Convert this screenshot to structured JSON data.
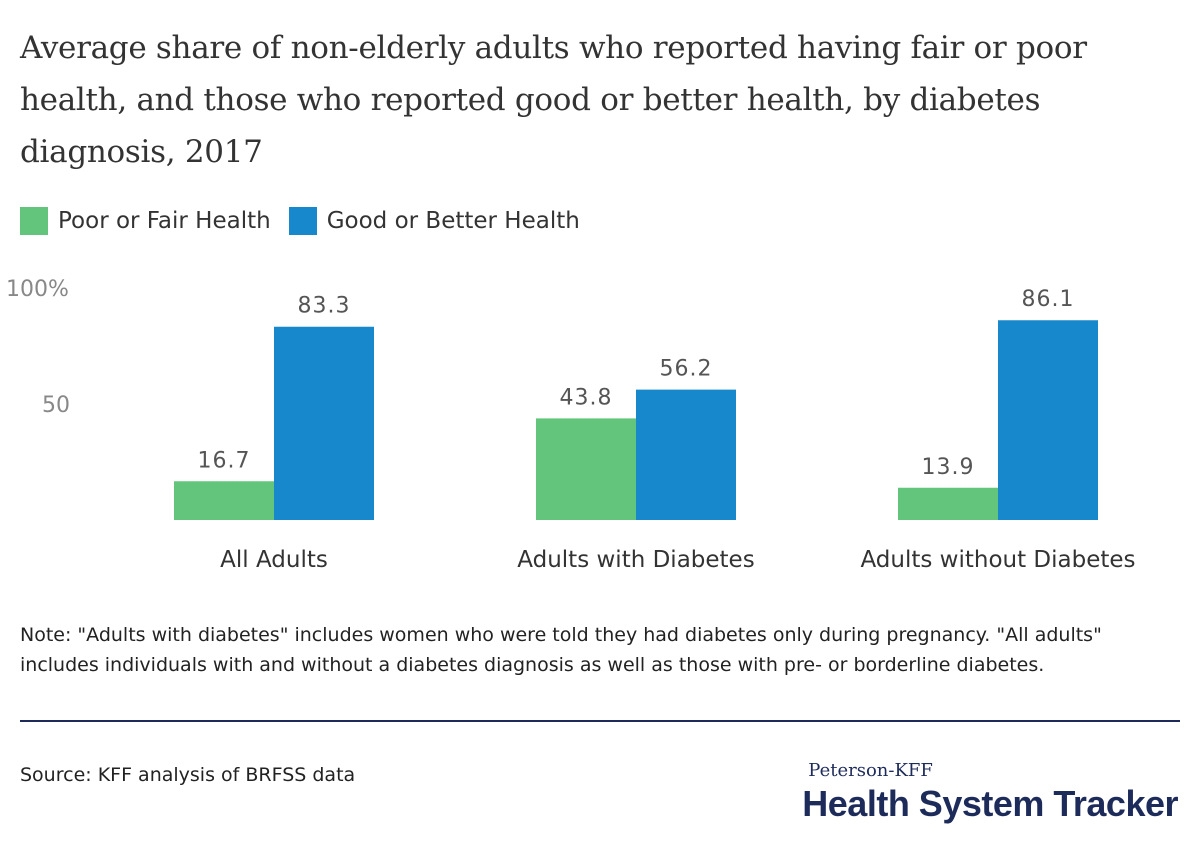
{
  "chart_data": {
    "type": "bar",
    "title": "Average share of non-elderly adults who reported having fair or poor health, and those who reported good or better health, by diabetes diagnosis, 2017",
    "categories": [
      "All Adults",
      "Adults with Diabetes",
      "Adults without Diabetes"
    ],
    "series": [
      {
        "name": "Poor or Fair Health",
        "values": [
          16.7,
          43.8,
          13.9
        ],
        "color": "#63c57c"
      },
      {
        "name": "Good or Better Health",
        "values": [
          83.3,
          56.2,
          86.1
        ],
        "color": "#1788cc"
      }
    ],
    "y_ticks": [
      {
        "value": 100,
        "label": "100%"
      },
      {
        "value": 50,
        "label": "50"
      }
    ],
    "ylim": [
      0,
      100
    ],
    "grid": false,
    "legend_position": "top-left",
    "data_labels": true
  },
  "note": "Note: \"Adults with diabetes\" includes women who were told they had diabetes only during pregnancy. \"All adults\" includes individuals with and without a diabetes diagnosis as well as those with pre- or borderline diabetes.",
  "source": "Source: KFF analysis of BRFSS data",
  "brand": {
    "top": "Peterson-KFF",
    "main": "Health System Tracker"
  },
  "colors": {
    "axis_label": "#888888",
    "value_label": "#555555",
    "brand": "#1d2b5a"
  }
}
